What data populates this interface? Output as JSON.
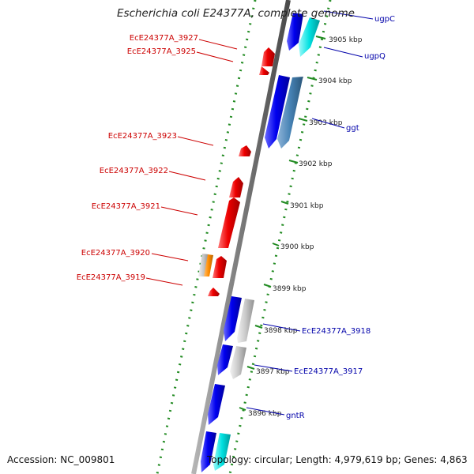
{
  "title": "Escherichia coli E24377A, complete genome",
  "footer": {
    "accession": "Accession: NC_009801",
    "topology": "Topology: circular; Length: 4,979,619 bp; Genes: 4,863"
  },
  "ticks": [
    {
      "label": "3905 kbp"
    },
    {
      "label": "3904 kbp"
    },
    {
      "label": "3903 kbp"
    },
    {
      "label": "3902 kbp"
    },
    {
      "label": "3901 kbp"
    },
    {
      "label": "3900 kbp"
    },
    {
      "label": "3899 kbp"
    },
    {
      "label": "3898 kbp"
    },
    {
      "label": "3897 kbp"
    },
    {
      "label": "3896 kbp"
    }
  ],
  "reverse_genes": [
    {
      "label": "EcE24377A_3927"
    },
    {
      "label": "EcE24377A_3925"
    },
    {
      "label": "EcE24377A_3923"
    },
    {
      "label": "EcE24377A_3922"
    },
    {
      "label": "EcE24377A_3921"
    },
    {
      "label": "EcE24377A_3920"
    },
    {
      "label": "EcE24377A_3919"
    }
  ],
  "forward_genes": [
    {
      "label": "ugpC"
    },
    {
      "label": "ugpQ"
    },
    {
      "label": "ggt"
    },
    {
      "label": "EcE24377A_3918"
    },
    {
      "label": "EcE24377A_3917"
    },
    {
      "label": "gntR"
    }
  ],
  "colors": {
    "backbone": "#8a8a8a",
    "forward_gene": "#0000ee",
    "reverse_gene": "#ee0000",
    "forward_label": "#0000aa",
    "reverse_label": "#cc0000",
    "dotted_track": "#228b22",
    "feature_cyan": "#00e0e0",
    "feature_steel": "#4682b4",
    "feature_grey": "#c8c8c8",
    "feature_orange": "#ff8c00"
  }
}
